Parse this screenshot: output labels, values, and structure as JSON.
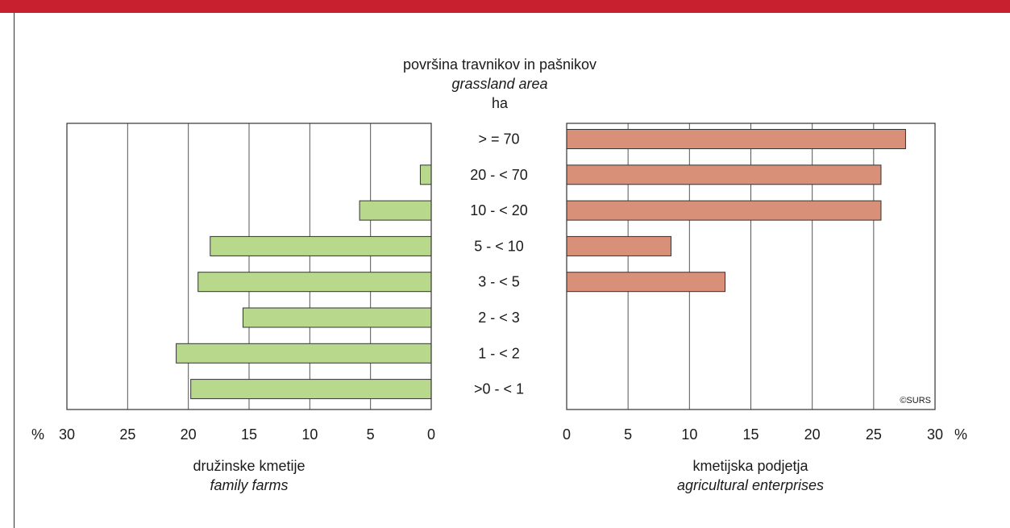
{
  "colors": {
    "top_band": "#c8202f",
    "left_bar_fill": "#b8d98c",
    "right_bar_fill": "#d99078",
    "bar_stroke": "#333333",
    "gridline": "#555555"
  },
  "chart_data": {
    "type": "bar",
    "orientation": "horizontal-butterfly",
    "category_title": "površina travnikov in pašnikov",
    "category_title_en": "grassland area",
    "category_unit": "ha",
    "categories": [
      "> = 70",
      "20 - < 70",
      "10 - < 20",
      "5 - < 10",
      "3 - < 5",
      "2 - < 3",
      "1 - < 2",
      ">0 - < 1"
    ],
    "left": {
      "name": "družinske kmetije",
      "name_en": "family farms",
      "axis_unit": "%",
      "xlim": [
        0,
        30
      ],
      "direction": "reversed",
      "ticks": [
        "0",
        "5",
        "10",
        "15",
        "20",
        "25",
        "30"
      ],
      "values": [
        0,
        0.9,
        5.9,
        18.2,
        19.2,
        15.5,
        21.0,
        19.8
      ]
    },
    "right": {
      "name": "kmetijska podjetja",
      "name_en": "agricultural enterprises",
      "axis_unit": "%",
      "xlim": [
        0,
        30
      ],
      "ticks": [
        "0",
        "5",
        "10",
        "15",
        "20",
        "25",
        "30"
      ],
      "values": [
        27.6,
        25.6,
        25.6,
        8.5,
        12.9,
        0,
        0,
        0
      ]
    },
    "grid": true,
    "credit": "©SURS"
  }
}
